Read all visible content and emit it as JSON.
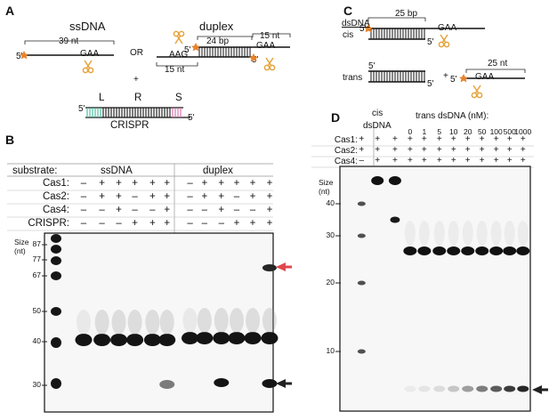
{
  "panel_a": {
    "letter": "A",
    "ssdna_title": "ssDNA",
    "duplex_title": "duplex",
    "or": "OR",
    "plus": "+",
    "ss_len": "39 nt",
    "prime5": "5'",
    "gaa": "GAA",
    "aag": "AAG",
    "bp24": "24 bp",
    "nt15_left": "15 nt",
    "nt15_right": "15 nt",
    "crispr_label": "CRISPR",
    "crispr_L": "L",
    "crispr_R": "R",
    "crispr_S": "S"
  },
  "panel_b": {
    "letter": "B",
    "substrate_label": "substrate:",
    "group_ssdna": "ssDNA",
    "group_duplex": "duplex",
    "row_labels": [
      "Cas1:",
      "Cas2:",
      "Cas4:",
      "CRISPR:"
    ],
    "rows": [
      [
        "–",
        "+",
        "+",
        "+",
        "+",
        "+",
        "–",
        "+",
        "+",
        "+",
        "+",
        "+"
      ],
      [
        "–",
        "+",
        "+",
        "–",
        "+",
        "+",
        "–",
        "+",
        "+",
        "–",
        "+",
        "+"
      ],
      [
        "–",
        "–",
        "+",
        "–",
        "–",
        "+",
        "–",
        "–",
        "+",
        "–",
        "–",
        "+"
      ],
      [
        "–",
        "–",
        "–",
        "+",
        "+",
        "+",
        "–",
        "–",
        "–",
        "+",
        "+",
        "+"
      ]
    ],
    "size_label": "Size\n(nt)",
    "size_markers": [
      "87",
      "77",
      "67",
      "50",
      "40",
      "30"
    ]
  },
  "panel_c": {
    "letter": "C",
    "dsdna_label": "dsDNA",
    "cis_label": "cis",
    "trans_label": "trans",
    "bp25": "25 bp",
    "nt25": "25 nt",
    "gaa": "GAA",
    "prime5": "5'",
    "plus": "+"
  },
  "panel_d": {
    "letter": "D",
    "cis_label": "cis",
    "dsdna_label": "dsDNA",
    "trans_label": "trans dsDNA (nM):",
    "concentrations": [
      "0",
      "1",
      "5",
      "10",
      "20",
      "50",
      "100",
      "500",
      "1000"
    ],
    "row_labels": [
      "Cas1:",
      "Cas2:",
      "Cas4:"
    ],
    "rows": [
      [
        "+",
        "+",
        "+",
        "+",
        "+",
        "+",
        "+",
        "+",
        "+",
        "+",
        "+",
        "+"
      ],
      [
        "+",
        "+",
        "+",
        "+",
        "+",
        "+",
        "+",
        "+",
        "+",
        "+",
        "+",
        "+"
      ],
      [
        "–",
        "+",
        "+",
        "+",
        "+",
        "+",
        "+",
        "+",
        "+",
        "+",
        "+",
        "+"
      ]
    ],
    "size_label": "Size\n(nt)",
    "size_markers": [
      "40",
      "30",
      "20",
      "10"
    ]
  },
  "colors": {
    "cut_arrow": "#e0474c",
    "dark_arrow": "#222222",
    "scissors": "#e6a33c",
    "star": "#e8832a",
    "crispr_left": "#3cb898",
    "crispr_right": "#d66aa6"
  }
}
